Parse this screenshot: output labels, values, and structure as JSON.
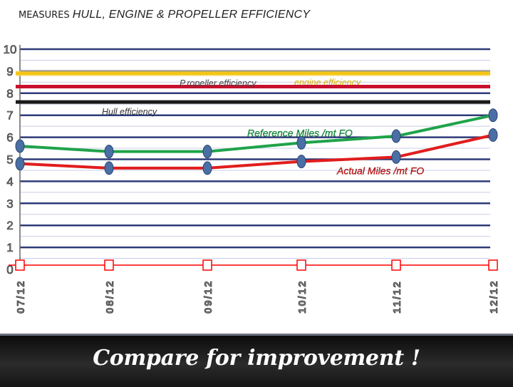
{
  "slide": {
    "title_prefix": "MEASURES",
    "title_main": "HULL, ENGINE & PROPELLER EFFICIENCY",
    "footer_text": "Compare for improvement !"
  },
  "colors": {
    "reference": "#1fa34a",
    "actual": "#e11d1d",
    "marker": "#4a6fa5",
    "propeller_line": "#c8102e",
    "engine_line": "#f5c518",
    "hull_line": "#1a1a1a",
    "gridline": "#2f3a78",
    "axis_line": "#ff0000",
    "label_yellow": "#d4b106"
  },
  "chart_data": {
    "type": "line",
    "categories": [
      "07/12",
      "08/12",
      "09/12",
      "10/12",
      "11/12",
      "12/12"
    ],
    "series": [
      {
        "name": "Reference Miles /mt FO",
        "values": [
          5.6,
          5.35,
          5.35,
          5.75,
          6.05,
          7.0
        ]
      },
      {
        "name": "Actual Miles /mt FO",
        "values": [
          4.8,
          4.6,
          4.6,
          4.9,
          5.1,
          6.1
        ]
      }
    ],
    "reference_lines": [
      {
        "name": "engine efficiency",
        "value": 8.9
      },
      {
        "name": "P.ropeller efficiency",
        "value": 8.3
      },
      {
        "name": "Hull efficiency",
        "value": 7.6
      }
    ],
    "yticks": [
      "0",
      "1",
      "2",
      "3",
      "4",
      "5",
      "6",
      "7",
      "8",
      "9",
      "10"
    ],
    "ylim": [
      0,
      10
    ],
    "grid": true
  }
}
